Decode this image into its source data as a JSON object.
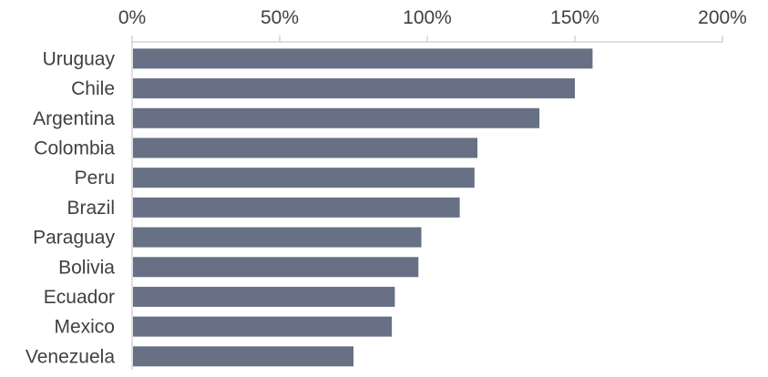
{
  "chart_data": {
    "type": "bar",
    "orientation": "horizontal",
    "title": "",
    "xlabel": "",
    "ylabel": "",
    "categories": [
      "Uruguay",
      "Chile",
      "Argentina",
      "Colombia",
      "Peru",
      "Brazil",
      "Paraguay",
      "Bolivia",
      "Ecuador",
      "Mexico",
      "Venezuela"
    ],
    "values": [
      156,
      150,
      138,
      117,
      116,
      111,
      98,
      97,
      89,
      88,
      75
    ],
    "value_unit": "%",
    "xlim": [
      0,
      200
    ],
    "xticks": [
      0,
      50,
      100,
      150,
      200
    ],
    "xtick_labels": [
      "0%",
      "50%",
      "100%",
      "150%",
      "200%"
    ],
    "axis_position": "top",
    "grid": false,
    "legend": "none",
    "bar_color": "#687086"
  }
}
